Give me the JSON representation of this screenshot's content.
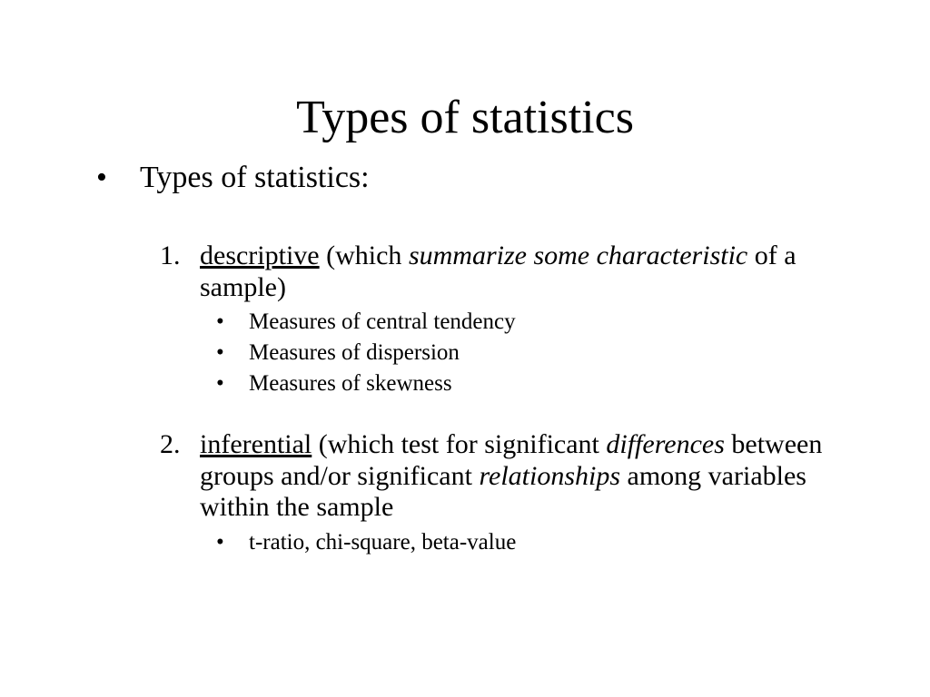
{
  "title": "Types of statistics",
  "l1_text": "Types of statistics:",
  "item1": {
    "num": "1.",
    "keyword": "descriptive",
    "mid1": " (which ",
    "ital1": "summarize some characteristic",
    "tail": " of a sample)",
    "subs": [
      "Measures of central tendency",
      "Measures of dispersion",
      "Measures of skewness"
    ]
  },
  "item2": {
    "num": "2.",
    "keyword": "inferential",
    "mid1": " (which test for significant ",
    "ital1": "differences",
    "mid2": " between groups and/or significant ",
    "ital2": "relationships",
    "tail": " among variables within the sample",
    "subs": [
      "t-ratio, chi-square, beta-value"
    ]
  },
  "style": {
    "bg": "#ffffff",
    "text": "#000000",
    "title_fontsize": 52,
    "l1_fontsize": 34,
    "l2_fontsize": 30,
    "l3_fontsize": 25,
    "font_family": "Times New Roman"
  }
}
